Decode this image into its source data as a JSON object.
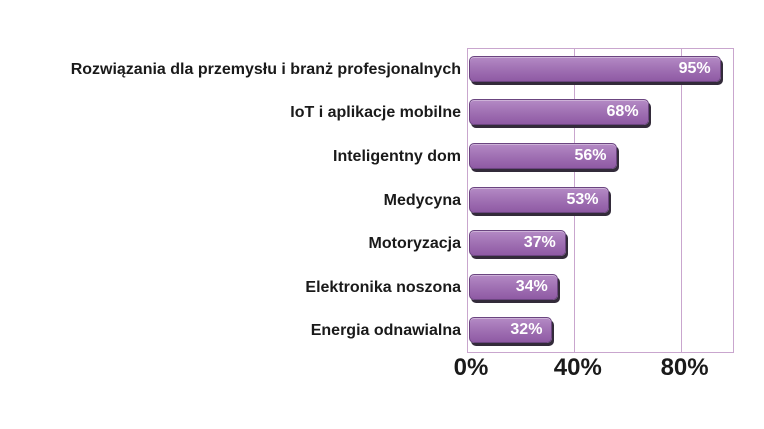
{
  "chart_data": {
    "type": "bar",
    "orientation": "horizontal",
    "title": "",
    "xlabel": "",
    "ylabel": "",
    "categories": [
      "Rozwiązania dla przemysłu i branż profesjonalnych",
      "IoT i aplikacje mobilne",
      "Inteligentny dom",
      "Medycyna",
      "Motoryzacja",
      "Elektronika noszona",
      "Energia odnawialna"
    ],
    "values": [
      95,
      68,
      56,
      53,
      37,
      34,
      32
    ],
    "value_labels": [
      "95%",
      "68%",
      "56%",
      "53%",
      "37%",
      "34%",
      "32%"
    ],
    "x_ticks": [
      "0%",
      "40%",
      "80%"
    ],
    "x_tick_values": [
      0,
      40,
      80
    ],
    "xlim": [
      0,
      100
    ],
    "grid": "vertical-gridlines-at-ticks",
    "legend": null,
    "colors": {
      "background": "#ffffff",
      "bar_fill_top": "#b48ac5",
      "bar_fill_mid": "#a172b4",
      "bar_fill_bottom": "#8f5aa4",
      "bar_border": "#6b4580",
      "bar_shadow": "#332b3a",
      "plot_border": "#c9a6ce",
      "gridline": "#c9a6ce",
      "value_label": "#ffffff",
      "category_label": "#1a1a1a",
      "tick_label": "#1a1a1a"
    }
  }
}
